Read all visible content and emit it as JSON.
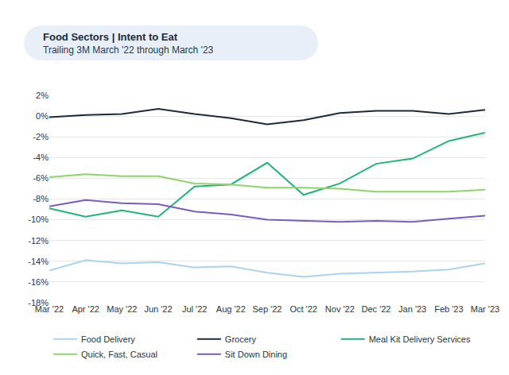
{
  "chart_data": {
    "type": "line",
    "title": "Food Sectors | Intent to Eat",
    "subtitle": "Trailing 3M March '22 through March '23",
    "categories": [
      "Mar '22",
      "Apr '22",
      "May '22",
      "Jun '22",
      "Jul '22",
      "Aug '22",
      "Sep '22",
      "Oct '22",
      "Nov '22",
      "Dec '22",
      "Jan '23",
      "Feb '23",
      "Mar '23"
    ],
    "series": [
      {
        "name": "Food Delivery",
        "color": "#a9d3ef",
        "values": [
          -14.9,
          -13.9,
          -14.2,
          -14.1,
          -14.6,
          -14.5,
          -15.1,
          -15.5,
          -15.2,
          -15.1,
          -15.0,
          -14.8,
          -14.2
        ]
      },
      {
        "name": "Grocery",
        "color": "#1c2b3a",
        "values": [
          -0.1,
          0.1,
          0.2,
          0.7,
          0.2,
          -0.2,
          -0.8,
          -0.4,
          0.3,
          0.5,
          0.5,
          0.2,
          0.6
        ]
      },
      {
        "name": "Meal Kit Delivery Services",
        "color": "#1fb57a",
        "values": [
          -8.9,
          -9.7,
          -9.1,
          -9.7,
          -6.8,
          -6.6,
          -4.5,
          -7.6,
          -6.5,
          -4.6,
          -4.1,
          -2.4,
          -1.6
        ]
      },
      {
        "name": "Quick, Fast, Casual",
        "color": "#8dd46a",
        "values": [
          -5.9,
          -5.6,
          -5.8,
          -5.8,
          -6.5,
          -6.6,
          -6.9,
          -6.9,
          -7.0,
          -7.3,
          -7.3,
          -7.3,
          -7.1
        ]
      },
      {
        "name": "Sit Down Dining",
        "color": "#7a5cc0",
        "values": [
          -8.7,
          -8.1,
          -8.4,
          -8.5,
          -9.2,
          -9.5,
          -10.0,
          -10.1,
          -10.2,
          -10.1,
          -10.2,
          -9.9,
          -9.6
        ]
      }
    ],
    "ylim": [
      -18,
      2
    ],
    "yticks": [
      {
        "value": 2,
        "label": "2%"
      },
      {
        "value": 0,
        "label": "0%"
      },
      {
        "value": -2,
        "label": "-2%"
      },
      {
        "value": -4,
        "label": "-4%"
      },
      {
        "value": -6,
        "label": "-6%"
      },
      {
        "value": -8,
        "label": "-8%"
      },
      {
        "value": -10,
        "label": "-10%"
      },
      {
        "value": -12,
        "label": "-12%"
      },
      {
        "value": -14,
        "label": "-14%"
      },
      {
        "value": -16,
        "label": "-16%"
      },
      {
        "value": -18,
        "label": "-18%"
      }
    ],
    "grid": true,
    "legend": "bottom"
  }
}
